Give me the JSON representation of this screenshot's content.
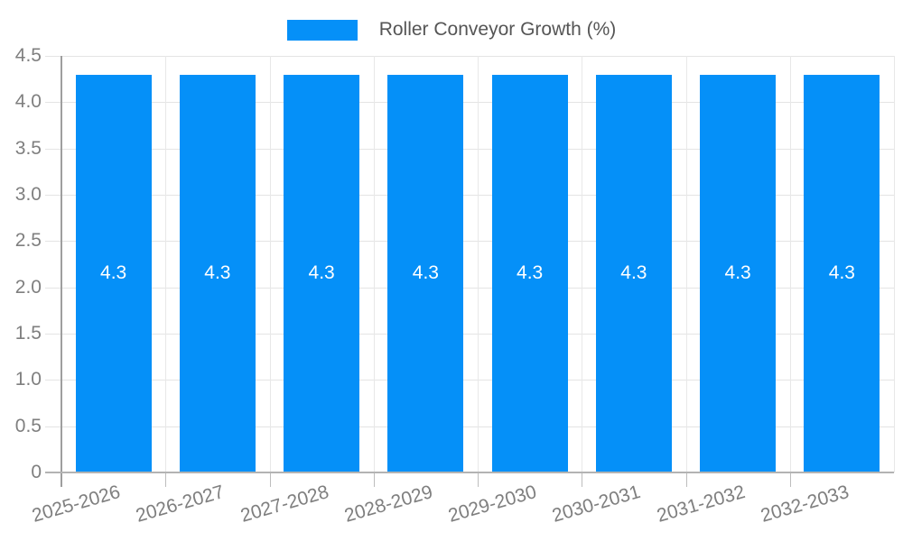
{
  "legend": {
    "label": "Roller Conveyor Growth (%)"
  },
  "chart_data": {
    "type": "bar",
    "title": "",
    "xlabel": "",
    "ylabel": "",
    "categories": [
      "2025-2026",
      "2026-2027",
      "2027-2028",
      "2028-2029",
      "2029-2030",
      "2030-2031",
      "2031-2032",
      "2032-2033"
    ],
    "series": [
      {
        "name": "Roller Conveyor Growth (%)",
        "values": [
          4.3,
          4.3,
          4.3,
          4.3,
          4.3,
          4.3,
          4.3,
          4.3
        ]
      }
    ],
    "bar_value_labels": [
      "4.3",
      "4.3",
      "4.3",
      "4.3",
      "4.3",
      "4.3",
      "4.3",
      "4.3"
    ],
    "ylim": [
      0,
      4.5
    ],
    "yticks": [
      {
        "value": 4.5,
        "label": "4.5"
      },
      {
        "value": 4.0,
        "label": "4.0"
      },
      {
        "value": 3.5,
        "label": "3.5"
      },
      {
        "value": 3.0,
        "label": "3.0"
      },
      {
        "value": 2.5,
        "label": "2.5"
      },
      {
        "value": 2.0,
        "label": "2.0"
      },
      {
        "value": 1.5,
        "label": "1.5"
      },
      {
        "value": 1.0,
        "label": "1.0"
      },
      {
        "value": 0.5,
        "label": "0.5"
      },
      {
        "value": 0,
        "label": "0"
      }
    ],
    "grid": true,
    "legend_position": "top-center",
    "colors": {
      "bar": "#0590F8",
      "grid": "#e4e4e4",
      "y_axis_line": "#9e9e9e",
      "x_axis_line": "#b3b3b3",
      "tick_text": "#7f7f7f",
      "legend_text": "#555555",
      "bar_label_text": "#ffffff",
      "background": "#ffffff"
    }
  }
}
